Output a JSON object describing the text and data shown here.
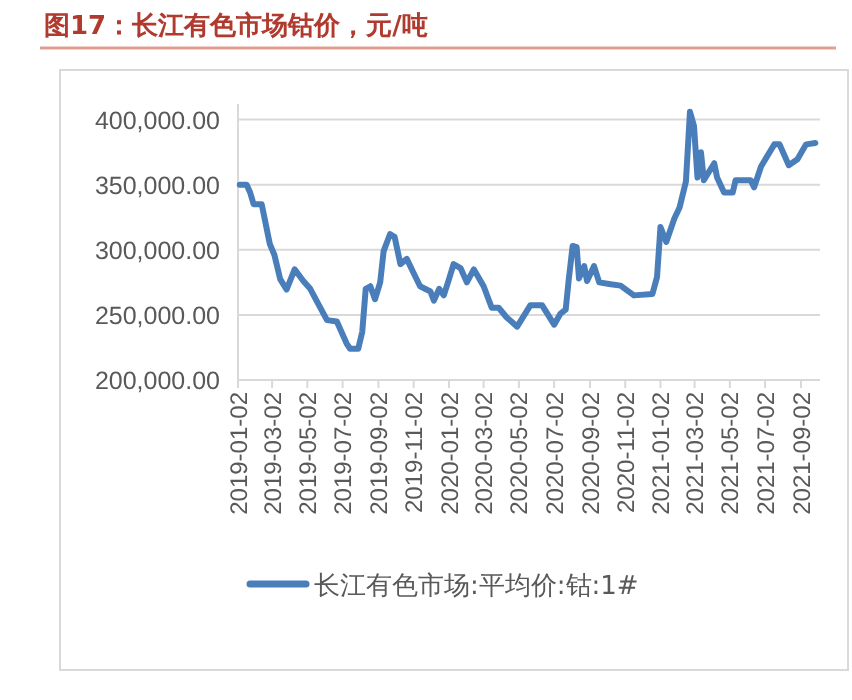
{
  "chart_data": {
    "type": "line",
    "title": "图17：长江有色市场钴价，元/吨",
    "x": [
      "2019-01-05",
      "2019-01-17",
      "2019-01-23",
      "2019-01-29",
      "2019-02-12",
      "2019-02-18",
      "2019-02-26",
      "2019-03-06",
      "2019-03-16",
      "2019-03-27",
      "2019-04-10",
      "2019-04-25",
      "2019-05-07",
      "2019-05-22",
      "2019-06-05",
      "2019-06-22",
      "2019-07-09",
      "2019-07-15",
      "2019-07-29",
      "2019-08-05",
      "2019-08-11",
      "2019-08-19",
      "2019-08-27",
      "2019-09-05",
      "2019-09-11",
      "2019-09-22",
      "2019-09-30",
      "2019-10-10",
      "2019-10-21",
      "2019-11-02",
      "2019-11-13",
      "2019-12-01",
      "2019-12-07",
      "2019-12-16",
      "2019-12-24",
      "2020-01-01",
      "2020-01-10",
      "2020-01-22",
      "2020-02-02",
      "2020-02-14",
      "2020-03-02",
      "2020-03-16",
      "2020-03-28",
      "2020-04-11",
      "2020-04-29",
      "2020-05-22",
      "2020-06-11",
      "2020-07-02",
      "2020-07-13",
      "2020-07-22",
      "2020-07-27",
      "2020-08-03",
      "2020-08-10",
      "2020-08-14",
      "2020-08-23",
      "2020-08-28",
      "2020-09-09",
      "2020-09-18",
      "2020-10-08",
      "2020-10-25",
      "2020-11-17",
      "2020-12-19",
      "2020-12-27",
      "2021-01-02",
      "2021-01-12",
      "2021-01-26",
      "2021-02-04",
      "2021-02-15",
      "2021-02-22",
      "2021-03-01",
      "2021-03-07",
      "2021-03-13",
      "2021-03-18",
      "2021-04-05",
      "2021-04-10",
      "2021-04-22",
      "2021-05-07",
      "2021-05-12",
      "2021-06-07",
      "2021-06-13",
      "2021-06-25",
      "2021-07-18",
      "2021-07-27",
      "2021-08-12",
      "2021-08-27",
      "2021-09-11",
      "2021-09-27"
    ],
    "series": [
      {
        "name": "长江有色市场:平均价:钴:1#",
        "color": "#4a7ebb",
        "values": [
          350000,
          350000,
          344000,
          335000,
          335000,
          322000,
          304500,
          296000,
          277500,
          269500,
          285000,
          276000,
          270000,
          257500,
          246000,
          245000,
          228000,
          224000,
          224000,
          237000,
          270000,
          272000,
          262000,
          275000,
          299000,
          312000,
          310000,
          289000,
          293000,
          282000,
          272000,
          268000,
          261000,
          270000,
          265000,
          276000,
          289000,
          286000,
          275000,
          285000,
          272000,
          255500,
          255500,
          248000,
          241000,
          257500,
          257500,
          242500,
          251000,
          254000,
          276000,
          303000,
          302000,
          278000,
          287500,
          276000,
          287500,
          275000,
          273500,
          272500,
          265000,
          266000,
          279000,
          317500,
          306000,
          324000,
          332500,
          352500,
          406000,
          395000,
          355500,
          375000,
          353500,
          366500,
          355500,
          344000,
          344000,
          353500,
          353500,
          348000,
          364000,
          381000,
          381000,
          365000,
          369500,
          381000,
          382000
        ]
      }
    ],
    "xlim": [
      "2019-01-02",
      "2021-10-05"
    ],
    "xticks": [
      "2019-01-02",
      "2019-03-02",
      "2019-05-02",
      "2019-07-02",
      "2019-09-02",
      "2019-11-02",
      "2020-01-02",
      "2020-03-02",
      "2020-05-02",
      "2020-07-02",
      "2020-09-02",
      "2020-11-02",
      "2021-01-02",
      "2021-03-02",
      "2021-05-02",
      "2021-07-02",
      "2021-09-02"
    ],
    "ylim": [
      200000,
      412000
    ],
    "yticks": [
      {
        "value": 200000,
        "label": "200,000.00"
      },
      {
        "value": 250000,
        "label": "250,000.00"
      },
      {
        "value": 300000,
        "label": "300,000.00"
      },
      {
        "value": 350000,
        "label": "350,000.00"
      },
      {
        "value": 400000,
        "label": "400,000.00"
      }
    ],
    "grid": "y",
    "legend": "bottom",
    "marker": "none",
    "line_style": "solid"
  }
}
